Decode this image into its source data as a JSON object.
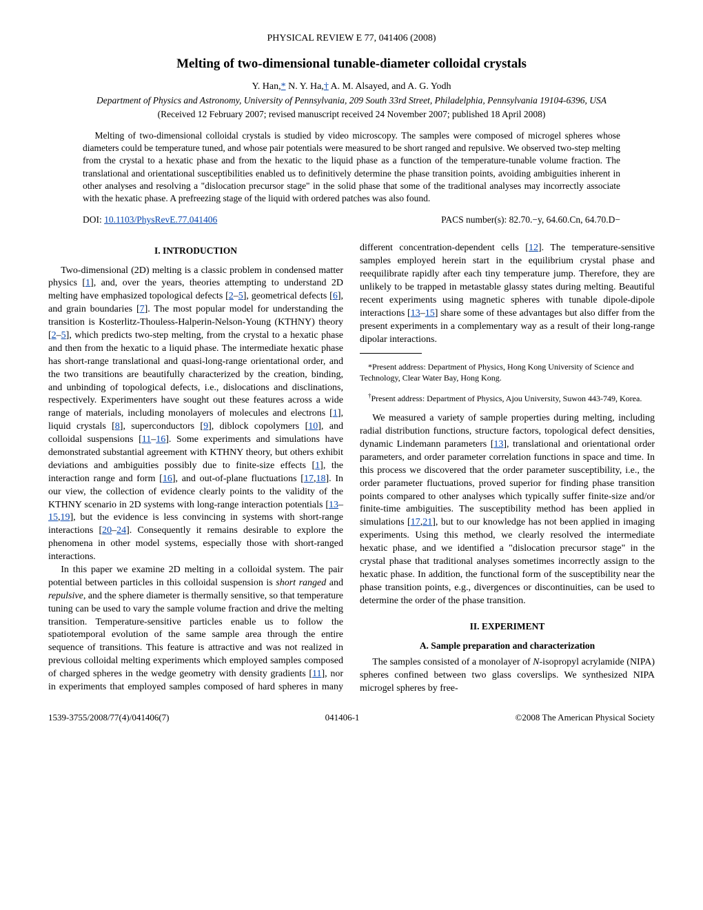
{
  "journal_header": "PHYSICAL REVIEW E 77, 041406 (2008)",
  "title": "Melting of two-dimensional tunable-diameter colloidal crystals",
  "authors_html": "Y. Han,<a class=\"ref\" href=\"#\">*</a> N. Y. Ha,<a class=\"ref\" href=\"#\">†</a> A. M. Alsayed, and A. G. Yodh",
  "affiliation": "Department of Physics and Astronomy, University of Pennsylvania, 209 South 33rd Street, Philadelphia, Pennsylvania 19104-6396, USA",
  "dates": "(Received 12 February 2007; revised manuscript received 24 November 2007; published 18 April 2008)",
  "abstract": "Melting of two-dimensional colloidal crystals is studied by video microscopy. The samples were composed of microgel spheres whose diameters could be temperature tuned, and whose pair potentials were measured to be short ranged and repulsive. We observed two-step melting from the crystal to a hexatic phase and from the hexatic to the liquid phase as a function of the temperature-tunable volume fraction. The translational and orientational susceptibilities enabled us to definitively determine the phase transition points, avoiding ambiguities inherent in other analyses and resolving a \"dislocation precursor stage\" in the solid phase that some of the traditional analyses may incorrectly associate with the hexatic phase. A prefreezing stage of the liquid with ordered patches was also found.",
  "doi_label": "DOI: ",
  "doi_link": "10.1103/PhysRevE.77.041406",
  "pacs": "PACS number(s): 82.70.−y, 64.60.Cn, 64.70.D−",
  "section1": "I. INTRODUCTION",
  "para1_html": "Two-dimensional (2D) melting is a classic problem in condensed matter physics [<a class=\"ref\" href=\"#\">1</a>], and, over the years, theories attempting to understand 2D melting have emphasized topological defects [<a class=\"ref\" href=\"#\">2</a>–<a class=\"ref\" href=\"#\">5</a>], geometrical defects [<a class=\"ref\" href=\"#\">6</a>], and grain boundaries [<a class=\"ref\" href=\"#\">7</a>]. The most popular model for understanding the transition is Kosterlitz-Thouless-Halperin-Nelson-Young (KTHNY) theory [<a class=\"ref\" href=\"#\">2</a>–<a class=\"ref\" href=\"#\">5</a>], which predicts two-step melting, from the crystal to a hexatic phase and then from the hexatic to a liquid phase. The intermediate hexatic phase has short-range translational and quasi-long-range orientational order, and the two transitions are beautifully characterized by the creation, binding, and unbinding of topological defects, i.e., dislocations and disclinations, respectively. Experimenters have sought out these features across a wide range of materials, including monolayers of molecules and electrons [<a class=\"ref\" href=\"#\">1</a>], liquid crystals [<a class=\"ref\" href=\"#\">8</a>], superconductors [<a class=\"ref\" href=\"#\">9</a>], diblock copolymers [<a class=\"ref\" href=\"#\">10</a>], and colloidal suspensions [<a class=\"ref\" href=\"#\">11</a>–<a class=\"ref\" href=\"#\">16</a>]. Some experiments and simulations have demonstrated substantial agreement with KTHNY theory, but others exhibit deviations and ambiguities possibly due to finite-size effects [<a class=\"ref\" href=\"#\">1</a>], the interaction range and form [<a class=\"ref\" href=\"#\">16</a>], and out-of-plane fluctuations [<a class=\"ref\" href=\"#\">17</a>,<a class=\"ref\" href=\"#\">18</a>]. In our view, the collection of evidence clearly points to the validity of the KTHNY scenario in 2D systems with long-range interaction potentials [<a class=\"ref\" href=\"#\">13</a>–<a class=\"ref\" href=\"#\">15</a>,<a class=\"ref\" href=\"#\">19</a>], but the evidence is less convincing in systems with short-range interactions [<a class=\"ref\" href=\"#\">20</a>–<a class=\"ref\" href=\"#\">24</a>]. Consequently it remains desirable to explore the phenomena in other model systems, especially those with short-ranged interactions.",
  "para2_html": "In this paper we examine 2D melting in a colloidal system. The pair potential between particles in this colloidal suspension is <i>short ranged</i> and <i>repulsive</i>, and the sphere diameter is thermally sensitive, so that temperature tuning can be used to vary the sample volume fraction and drive the melting transition. Temperature-sensitive particles enable us to follow the spatiotemporal evolution of the same sample area through the entire sequence of transitions. This feature is attractive and was not realized in previous colloidal melting experiments which employed samples composed of charged spheres in the wedge geometry with density gradients [<a class=\"ref\" href=\"#\">11</a>], nor in experiments that employed samples composed of hard spheres in many different concentration-dependent cells [<a class=\"ref\" href=\"#\">12</a>]. The temperature-sensitive samples employed herein start in the equilibrium crystal phase and reequilibrate rapidly after each tiny temperature jump. Therefore, they are unlikely to be trapped in metastable glassy states during melting. Beautiful recent experiments using magnetic spheres with tunable dipole-dipole interactions [<a class=\"ref\" href=\"#\">13</a>–<a class=\"ref\" href=\"#\">15</a>] share some of these advantages but also differ from the present experiments in a complementary way as a result of their long-range dipolar interactions.",
  "para3_html": "We measured a variety of sample properties during melting, including radial distribution functions, structure factors, topological defect densities, dynamic Lindemann parameters [<a class=\"ref\" href=\"#\">13</a>], translational and orientational order parameters, and order parameter correlation functions in space and time. In this process we discovered that the order parameter susceptibility, i.e., the order parameter fluctuations, proved superior for finding phase transition points compared to other analyses which typically suffer finite-size and/or finite-time ambiguities. The susceptibility method has been applied in simulations [<a class=\"ref\" href=\"#\">17</a>,<a class=\"ref\" href=\"#\">21</a>], but to our knowledge has not been applied in imaging experiments. Using this method, we clearly resolved the intermediate hexatic phase, and we identified a \"dislocation precursor stage\" in the crystal phase that traditional analyses sometimes incorrectly assign to the hexatic phase. In addition, the functional form of the susceptibility near the phase transition points, e.g., divergences or discontinuities, can be used to determine the order of the phase transition.",
  "section2": "II. EXPERIMENT",
  "subsection2a": "A. Sample preparation and characterization",
  "para4_html": "The samples consisted of a monolayer of <i>N</i>-isopropyl acrylamide (NIPA) spheres confined between two glass coverslips. We synthesized NIPA microgel spheres by free-",
  "footnote1": "*Present address: Department of Physics, Hong Kong University of Science and Technology, Clear Water Bay, Hong Kong.",
  "footnote2_html": "<sup>†</sup>Present address: Department of Physics, Ajou University, Suwon 443-749, Korea.",
  "footer_left": "1539-3755/2008/77(4)/041406(7)",
  "footer_center": "041406-1",
  "footer_right": "©2008 The American Physical Society"
}
